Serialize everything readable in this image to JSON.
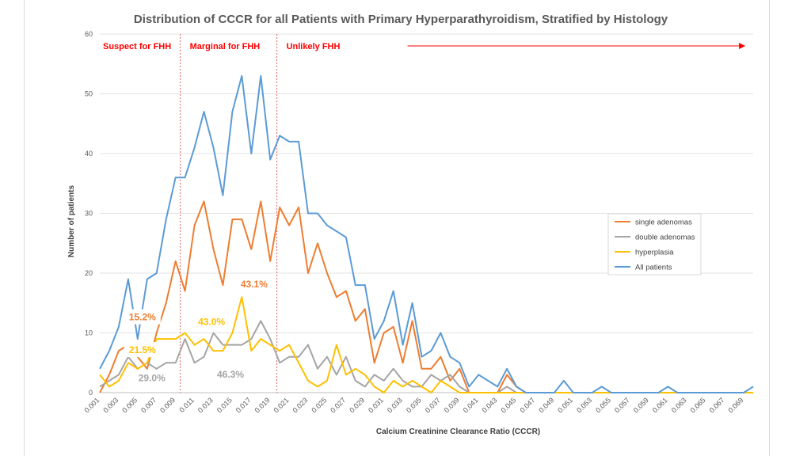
{
  "chart_data": {
    "type": "line",
    "title": "Distribution of CCCR for all Patients with Primary Hyperparathyroidism, Stratified by Histology",
    "xlabel": "Calcium Creatinine Clearance Ratio (CCCR)",
    "ylabel": "Number of patients",
    "ylim": [
      0,
      60
    ],
    "yticks": [
      "0",
      "10",
      "20",
      "30",
      "40",
      "50",
      "60"
    ],
    "grid": true,
    "legend_position": "right",
    "x": [
      0.001,
      0.002,
      0.003,
      0.004,
      0.005,
      0.006,
      0.007,
      0.008,
      0.009,
      0.01,
      0.011,
      0.012,
      0.013,
      0.014,
      0.015,
      0.016,
      0.017,
      0.018,
      0.019,
      0.02,
      0.021,
      0.022,
      0.023,
      0.024,
      0.025,
      0.026,
      0.027,
      0.028,
      0.029,
      0.03,
      0.031,
      0.032,
      0.033,
      0.034,
      0.035,
      0.036,
      0.037,
      0.038,
      0.039,
      0.04,
      0.041,
      0.042,
      0.043,
      0.044,
      0.045,
      0.046,
      0.047,
      0.048,
      0.049,
      0.05,
      0.051,
      0.052,
      0.053,
      0.054,
      0.055,
      0.056,
      0.057,
      0.058,
      0.059,
      0.06,
      0.061,
      0.062,
      0.063,
      0.064,
      0.065,
      0.066,
      0.067,
      0.068,
      0.069,
      0.07
    ],
    "xtick_labels": [
      "0.001",
      "0.003",
      "0.005",
      "0.007",
      "0.009",
      "0.011",
      "0.013",
      "0.015",
      "0.017",
      "0.019",
      "0.021",
      "0.023",
      "0.025",
      "0.027",
      "0.029",
      "0.031",
      "0.033",
      "0.035",
      "0.037",
      "0.039",
      "0.041",
      "0.043",
      "0.045",
      "0.047",
      "0.049",
      "0.051",
      "0.053",
      "0.055",
      "0.057",
      "0.059",
      "0.061",
      "0.063",
      "0.065",
      "0.067",
      "0.069"
    ],
    "series": [
      {
        "name": "single adenomas",
        "color": "#ed7d31",
        "values": [
          0,
          3,
          7,
          8,
          6,
          4,
          10,
          15,
          22,
          17,
          28,
          32,
          24,
          18,
          29,
          29,
          24,
          32,
          22,
          31,
          28,
          31,
          20,
          25,
          20,
          16,
          17,
          12,
          14,
          5,
          10,
          11,
          5,
          12,
          4,
          4,
          6,
          2,
          4,
          0,
          0,
          0,
          0,
          3,
          1,
          0,
          0,
          0,
          0,
          0,
          0,
          0,
          0,
          0,
          0,
          0,
          0,
          0,
          0,
          0,
          0,
          0,
          0,
          0,
          0,
          0,
          0,
          0,
          0,
          0
        ]
      },
      {
        "name": "double adenomas",
        "color": "#a5a5a5",
        "values": [
          1,
          2,
          3,
          6,
          4,
          5,
          4,
          5,
          5,
          9,
          5,
          6,
          10,
          8,
          8,
          8,
          9,
          12,
          9,
          5,
          6,
          6,
          8,
          4,
          6,
          3,
          6,
          2,
          1,
          3,
          2,
          4,
          2,
          1,
          1,
          3,
          2,
          3,
          1,
          0,
          0,
          0,
          0,
          1,
          0,
          0,
          0,
          0,
          0,
          0,
          0,
          0,
          0,
          0,
          0,
          0,
          0,
          0,
          0,
          0,
          0,
          0,
          0,
          0,
          0,
          0,
          0,
          0,
          0,
          0
        ]
      },
      {
        "name": "hyperplasia",
        "color": "#ffc000",
        "values": [
          3,
          1,
          2,
          5,
          4,
          5,
          9,
          9,
          9,
          10,
          8,
          9,
          7,
          7,
          10,
          16,
          7,
          9,
          8,
          7,
          8,
          5,
          2,
          1,
          2,
          8,
          3,
          4,
          3,
          1,
          0,
          2,
          1,
          2,
          1,
          0,
          2,
          1,
          0,
          0,
          0,
          0,
          0,
          0,
          0,
          0,
          0,
          0,
          0,
          0,
          0,
          0,
          0,
          0,
          0,
          0,
          0,
          0,
          0,
          0,
          0,
          0,
          0,
          0,
          0,
          0,
          0,
          0,
          0,
          0
        ]
      },
      {
        "name": "All patients",
        "color": "#5b9bd5",
        "values": [
          4,
          7,
          11,
          19,
          9,
          19,
          20,
          29,
          36,
          36,
          41,
          47,
          41,
          33,
          47,
          53,
          40,
          53,
          39,
          43,
          42,
          42,
          30,
          30,
          28,
          27,
          26,
          18,
          18,
          9,
          12,
          17,
          8,
          15,
          6,
          7,
          10,
          6,
          5,
          1,
          3,
          2,
          1,
          4,
          1,
          0,
          0,
          0,
          0,
          2,
          0,
          0,
          0,
          1,
          0,
          0,
          0,
          0,
          0,
          0,
          1,
          0,
          0,
          0,
          0,
          0,
          0,
          0,
          0,
          1
        ]
      }
    ],
    "zones": [
      {
        "label": "Suspect for FHH"
      },
      {
        "label": "Marginal for FHH"
      },
      {
        "label": "Unlikely FHH"
      }
    ],
    "annotations": [
      {
        "text": "15.2%",
        "color": "#ed7d31",
        "x": 0.0055,
        "y": 12.5
      },
      {
        "text": "21.5%",
        "color": "#ffc000",
        "x": 0.0055,
        "y": 7.0
      },
      {
        "text": "29.0%",
        "color": "#a5a5a5",
        "x": 0.0065,
        "y": 2.3
      },
      {
        "text": "43.1%",
        "color": "#ed7d31",
        "x": 0.0173,
        "y": 18.0
      },
      {
        "text": "43.0%",
        "color": "#ffc000",
        "x": 0.0128,
        "y": 11.7
      },
      {
        "text": "46.3%",
        "color": "#a5a5a5",
        "x": 0.0148,
        "y": 2.9
      }
    ]
  }
}
